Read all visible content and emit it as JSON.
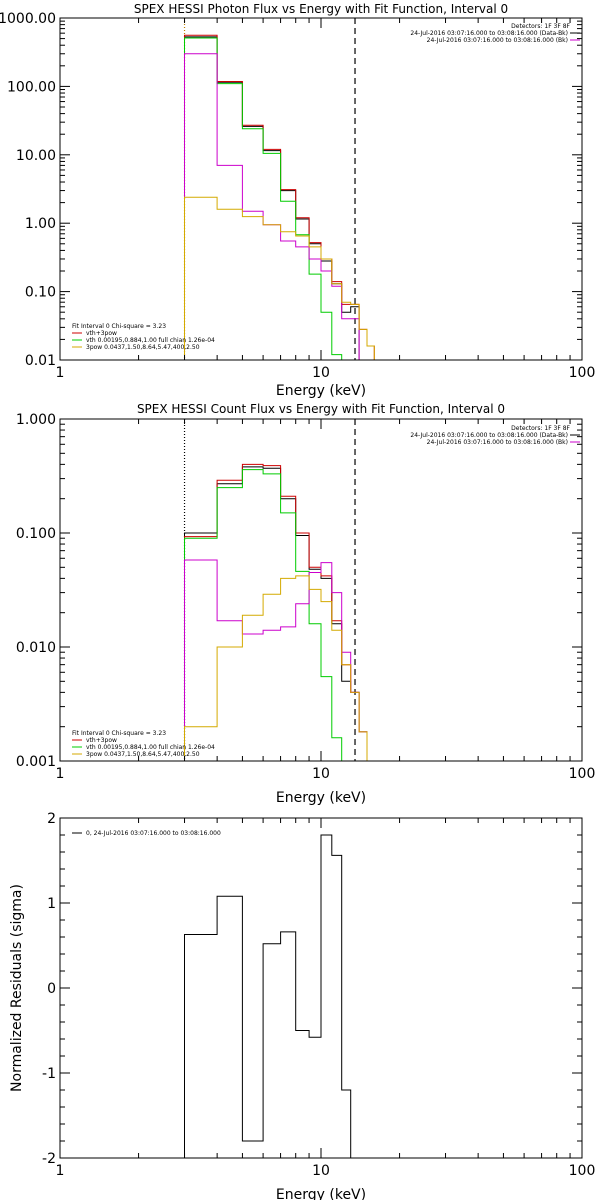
{
  "chart_data": [
    {
      "type": "line",
      "title": "SPEX HESSI Photon Flux vs Energy with Fit Function, Interval 0",
      "xlabel": "Energy (keV)",
      "ylabel": "",
      "xscale": "log",
      "yscale": "log",
      "xlim": [
        1,
        100
      ],
      "ylim": [
        0.01,
        1000
      ],
      "xticks": [
        {
          "v": 1,
          "label": "1"
        },
        {
          "v": 10,
          "label": "10"
        },
        {
          "v": 100,
          "label": "100"
        }
      ],
      "yticks": [
        {
          "v": 1000,
          "label": "1000.00"
        },
        {
          "v": 100,
          "label": "100.00"
        },
        {
          "v": 10,
          "label": "10.00"
        },
        {
          "v": 1,
          "label": "1.00"
        },
        {
          "v": 0.1,
          "label": "0.10"
        },
        {
          "v": 0.01,
          "label": "0.01"
        }
      ],
      "vlines": [
        {
          "x": 3.0,
          "style": "dotted",
          "color": "#c08000"
        },
        {
          "x": 13.5,
          "style": "dashed",
          "color": "#000000"
        }
      ],
      "info_right": [
        "Detectors: 1F 3F 8F",
        "24-Jul-2016 03:07:16.000 to 03:08:16.000 (Data-Bk)",
        "24-Jul-2016 03:07:16.000 to 03:08:16.000 (Bk)"
      ],
      "legend_right_colors": [
        "#000000",
        "#cc00cc"
      ],
      "fit_text": [
        "Fit Interval 0   Chi-square = 3.23",
        "vth+3pow",
        "vth 0.00195,0.884,1.00  full chian 1.26e-04",
        "3pow 0.0437,1.50,8.64,5.47,400,2.50"
      ],
      "fit_colors": [
        "",
        "#cc0000",
        "#00cc00",
        "#d4aa00"
      ],
      "edges": [
        3,
        4,
        5,
        6,
        7,
        8,
        9,
        10,
        11,
        12,
        13,
        14,
        15,
        16,
        17,
        18,
        19
      ],
      "series": [
        {
          "color": "#000000",
          "values": [
            530,
            115,
            26,
            11.5,
            3.0,
            1.15,
            0.5,
            0.28,
            0.13,
            0.05,
            0.06,
            0.01,
            0.01,
            0.01,
            0.01,
            0.01
          ]
        },
        {
          "color": "#cc0000",
          "values": [
            560,
            118,
            27,
            12,
            3.1,
            1.2,
            0.52,
            0.3,
            0.14,
            0.065,
            0.065,
            0.028,
            0.016,
            0.01,
            0.01,
            0.01
          ]
        },
        {
          "color": "#00cc00",
          "values": [
            510,
            110,
            24,
            10.5,
            2.1,
            0.68,
            0.18,
            0.05,
            0.012,
            0.01,
            0.01,
            0.01,
            0.01,
            0.01,
            0.01,
            0.01
          ]
        },
        {
          "color": "#cc00cc",
          "values": [
            300,
            7.0,
            1.5,
            0.95,
            0.55,
            0.45,
            0.3,
            0.2,
            0.12,
            0.04,
            0.04,
            0.01,
            0.01,
            0.01,
            0.01,
            0.01
          ]
        },
        {
          "color": "#d4aa00",
          "values": [
            2.4,
            1.6,
            1.25,
            0.95,
            0.75,
            0.65,
            0.45,
            0.3,
            0.13,
            0.07,
            0.065,
            0.028,
            0.016,
            0.01,
            0.01,
            0.01
          ]
        }
      ]
    },
    {
      "type": "line",
      "title": "SPEX HESSI Count Flux vs Energy with Fit Function, Interval 0",
      "xlabel": "Energy (keV)",
      "ylabel": "",
      "xscale": "log",
      "yscale": "log",
      "xlim": [
        1,
        100
      ],
      "ylim": [
        0.001,
        1
      ],
      "xticks": [
        {
          "v": 1,
          "label": "1"
        },
        {
          "v": 10,
          "label": "10"
        },
        {
          "v": 100,
          "label": "100"
        }
      ],
      "yticks": [
        {
          "v": 1,
          "label": "1.000"
        },
        {
          "v": 0.1,
          "label": "0.100"
        },
        {
          "v": 0.01,
          "label": "0.010"
        },
        {
          "v": 0.001,
          "label": "0.001"
        }
      ],
      "vlines": [
        {
          "x": 3.0,
          "style": "dotted",
          "color": "#000000"
        },
        {
          "x": 13.5,
          "style": "dashed",
          "color": "#000000"
        }
      ],
      "info_right": [
        "Detectors: 1F 3F 8F",
        "24-Jul-2016 03:07:16.000 to 03:08:16.000 (Data-Bk)",
        "24-Jul-2016 03:07:16.000 to 03:08:16.000 (Bk)"
      ],
      "legend_right_colors": [
        "#000000",
        "#cc00cc"
      ],
      "fit_text": [
        "Fit Interval 0   Chi-square = 3.23",
        "vth+3pow",
        "vth 0.00195,0.884,1.00  full chian 1.26e-04",
        "3pow 0.0437,1.50,8.64,5.47,400,2.50"
      ],
      "fit_colors": [
        "",
        "#cc0000",
        "#00cc00",
        "#d4aa00"
      ],
      "edges": [
        3,
        4,
        5,
        6,
        7,
        8,
        9,
        10,
        11,
        12,
        13,
        14,
        15,
        16,
        17,
        18,
        19
      ],
      "series": [
        {
          "color": "#000000",
          "values": [
            0.1,
            0.27,
            0.38,
            0.37,
            0.2,
            0.095,
            0.048,
            0.04,
            0.016,
            0.005,
            0.004,
            0.0018,
            0.001,
            0.001,
            0.001,
            0.001
          ]
        },
        {
          "color": "#cc0000",
          "values": [
            0.093,
            0.29,
            0.4,
            0.39,
            0.21,
            0.1,
            0.05,
            0.042,
            0.017,
            0.007,
            0.004,
            0.0018,
            0.001,
            0.001,
            0.001,
            0.001
          ]
        },
        {
          "color": "#00cc00",
          "values": [
            0.09,
            0.25,
            0.36,
            0.33,
            0.15,
            0.046,
            0.016,
            0.0055,
            0.0016,
            0.001,
            0.001,
            0.001,
            0.001,
            0.001,
            0.001,
            0.001
          ]
        },
        {
          "color": "#cc00cc",
          "values": [
            0.058,
            0.017,
            0.013,
            0.014,
            0.015,
            0.024,
            0.045,
            0.055,
            0.03,
            0.009,
            0.004,
            0.0018,
            0.001,
            0.001,
            0.001,
            0.001
          ]
        },
        {
          "color": "#d4aa00",
          "values": [
            0.002,
            0.01,
            0.019,
            0.029,
            0.04,
            0.042,
            0.032,
            0.025,
            0.014,
            0.007,
            0.004,
            0.0018,
            0.001,
            0.001,
            0.001,
            0.001
          ]
        }
      ]
    },
    {
      "type": "line",
      "title": "",
      "xlabel": "Energy (keV)",
      "ylabel": "Normalized Residuals (sigma)",
      "xscale": "log",
      "yscale": "linear",
      "xlim": [
        1,
        100
      ],
      "ylim": [
        -2,
        2
      ],
      "xticks": [
        {
          "v": 1,
          "label": "1"
        },
        {
          "v": 10,
          "label": "10"
        },
        {
          "v": 100,
          "label": "100"
        }
      ],
      "yticks": [
        {
          "v": 2,
          "label": "2"
        },
        {
          "v": 1,
          "label": "1"
        },
        {
          "v": 0,
          "label": "0"
        },
        {
          "v": -1,
          "label": "-1"
        },
        {
          "v": -2,
          "label": "-2"
        }
      ],
      "legend": [
        "0, 24-Jul-2016 03:07:16.000 to 03:08:16.000"
      ],
      "edges": [
        3,
        4,
        5,
        6,
        7,
        8,
        9,
        10,
        11,
        12,
        13
      ],
      "series": [
        {
          "color": "#000000",
          "values": [
            0.63,
            1.08,
            -1.8,
            0.52,
            0.66,
            -0.5,
            -0.58,
            1.8,
            1.56,
            -1.2
          ]
        }
      ]
    }
  ]
}
